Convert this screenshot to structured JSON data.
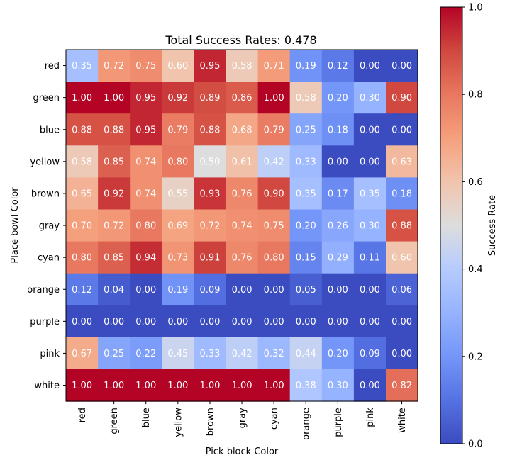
{
  "chart_data": {
    "type": "heatmap",
    "title": "Total Success Rates: 0.478",
    "xlabel": "Pick block Color",
    "ylabel": "Place bowl Color",
    "x_categories": [
      "red",
      "green",
      "blue",
      "yellow",
      "brown",
      "gray",
      "cyan",
      "orange",
      "purple",
      "pink",
      "white"
    ],
    "y_categories": [
      "red",
      "green",
      "blue",
      "yellow",
      "brown",
      "gray",
      "cyan",
      "orange",
      "purple",
      "pink",
      "white"
    ],
    "values": [
      [
        0.35,
        0.72,
        0.75,
        0.6,
        0.95,
        0.58,
        0.71,
        0.19,
        0.12,
        0.0,
        0.0
      ],
      [
        1.0,
        1.0,
        0.95,
        0.92,
        0.89,
        0.86,
        1.0,
        0.58,
        0.2,
        0.3,
        0.9
      ],
      [
        0.88,
        0.88,
        0.95,
        0.79,
        0.88,
        0.68,
        0.79,
        0.25,
        0.18,
        0.0,
        0.0
      ],
      [
        0.58,
        0.85,
        0.74,
        0.8,
        0.5,
        0.61,
        0.42,
        0.33,
        0.0,
        0.0,
        0.63
      ],
      [
        0.65,
        0.92,
        0.74,
        0.55,
        0.93,
        0.76,
        0.9,
        0.35,
        0.17,
        0.35,
        0.18
      ],
      [
        0.7,
        0.72,
        0.8,
        0.69,
        0.72,
        0.74,
        0.75,
        0.2,
        0.26,
        0.3,
        0.88
      ],
      [
        0.8,
        0.85,
        0.94,
        0.73,
        0.91,
        0.76,
        0.8,
        0.15,
        0.29,
        0.11,
        0.6
      ],
      [
        0.12,
        0.04,
        0.0,
        0.19,
        0.09,
        0.0,
        0.0,
        0.05,
        0.0,
        0.0,
        0.06
      ],
      [
        0.0,
        0.0,
        0.0,
        0.0,
        0.0,
        0.0,
        0.0,
        0.0,
        0.0,
        0.0,
        0.0
      ],
      [
        0.67,
        0.25,
        0.22,
        0.45,
        0.33,
        0.42,
        0.32,
        0.44,
        0.2,
        0.09,
        0.0
      ],
      [
        1.0,
        1.0,
        1.0,
        1.0,
        1.0,
        1.0,
        1.0,
        0.38,
        0.3,
        0.0,
        0.82
      ]
    ],
    "vmin": 0,
    "vmax": 1,
    "colormap": "coolwarm",
    "colorbar": {
      "label": "Success Rate",
      "ticks": [
        "0.0",
        "0.2",
        "0.4",
        "0.6",
        "0.8",
        "1.0"
      ]
    },
    "value_format": "2 decimals",
    "annotation_text_color": "#ffffff"
  }
}
